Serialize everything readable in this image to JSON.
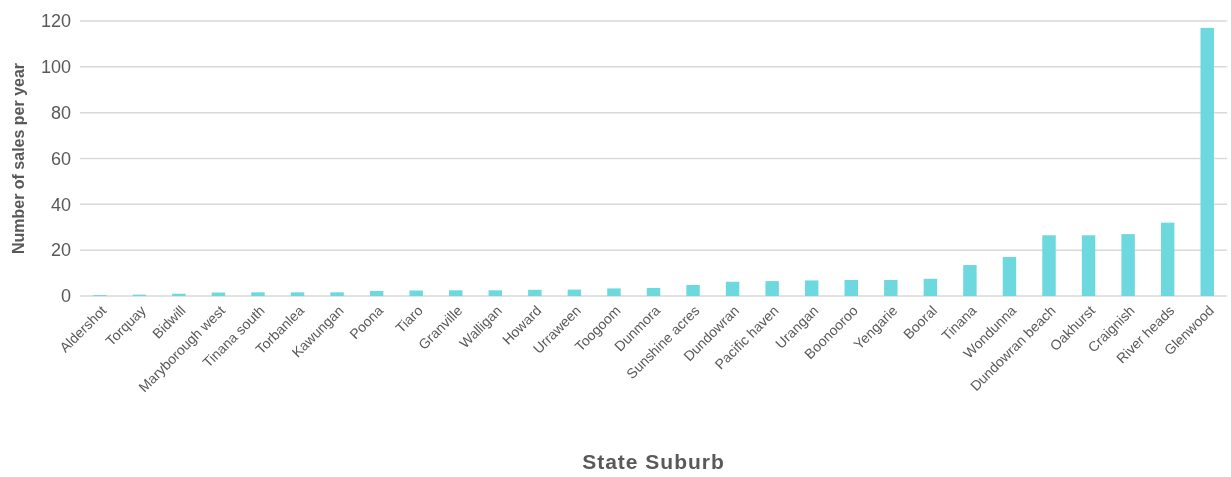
{
  "chart_data": {
    "type": "bar",
    "xlabel": "State Suburb",
    "ylabel": "Number of sales per year",
    "categories": [
      "Aldershot",
      "Torquay",
      "Bidwill",
      "Maryborough west",
      "Tinana south",
      "Torbanlea",
      "Kawungan",
      "Poona",
      "Tiaro",
      "Granville",
      "Walligan",
      "Howard",
      "Urraween",
      "Toogoom",
      "Dunmora",
      "Sunshine acres",
      "Dundowran",
      "Pacific haven",
      "Urangan",
      "Boonooroo",
      "Yengarie",
      "Booral",
      "Tinana",
      "Wondunna",
      "Dundowran beach",
      "Oakhurst",
      "Craignish",
      "River heads",
      "Glenwood"
    ],
    "values": [
      0.4,
      0.6,
      1,
      1.5,
      1.6,
      1.6,
      1.6,
      2.2,
      2.4,
      2.5,
      2.5,
      2.7,
      2.8,
      3.3,
      3.5,
      4.8,
      6.2,
      6.5,
      6.8,
      7,
      7,
      7.5,
      13.5,
      17,
      26.5,
      26.5,
      27,
      32,
      117
    ],
    "color": "#6dd9df",
    "ylim": [
      0,
      120
    ],
    "yticks": [
      0,
      20,
      40,
      60,
      80,
      100,
      120
    ],
    "grid": "y"
  }
}
